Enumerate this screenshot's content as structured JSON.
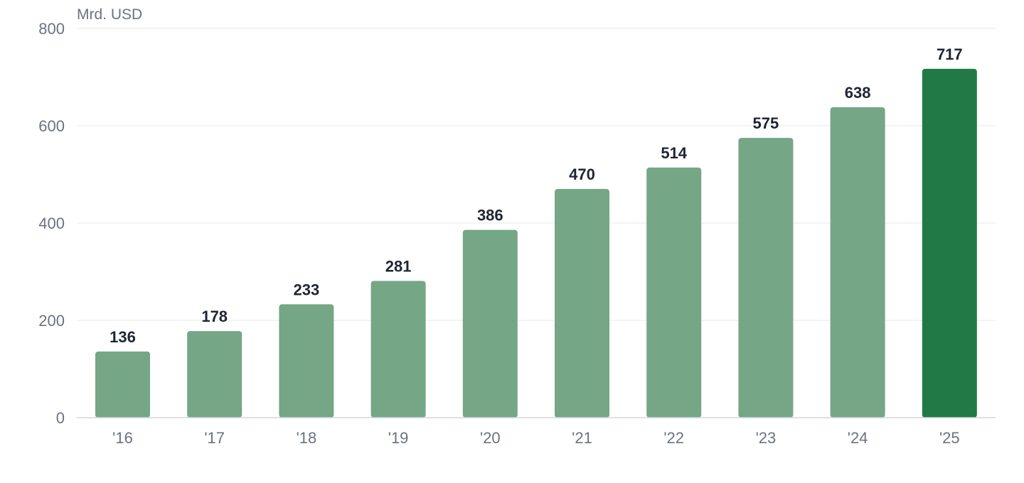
{
  "chart_data": {
    "type": "bar",
    "unit_label": "Mrd. USD",
    "categories": [
      "'16",
      "'17",
      "'18",
      "'19",
      "'20",
      "'21",
      "'22",
      "'23",
      "'24",
      "'25"
    ],
    "values": [
      136,
      178,
      233,
      281,
      386,
      470,
      514,
      575,
      638,
      717
    ],
    "value_labels": [
      "136",
      "178",
      "233",
      "281",
      "386",
      "470",
      "514",
      "575",
      "638",
      "717"
    ],
    "y_ticks": [
      0,
      200,
      400,
      600,
      800
    ],
    "y_tick_labels": [
      "0",
      "200",
      "400",
      "600",
      "800"
    ],
    "ylim": [
      0,
      800
    ],
    "grid": true,
    "colors": {
      "bar": "#75a686",
      "highlight_bar": "#217a45"
    },
    "highlight_index": 9
  }
}
